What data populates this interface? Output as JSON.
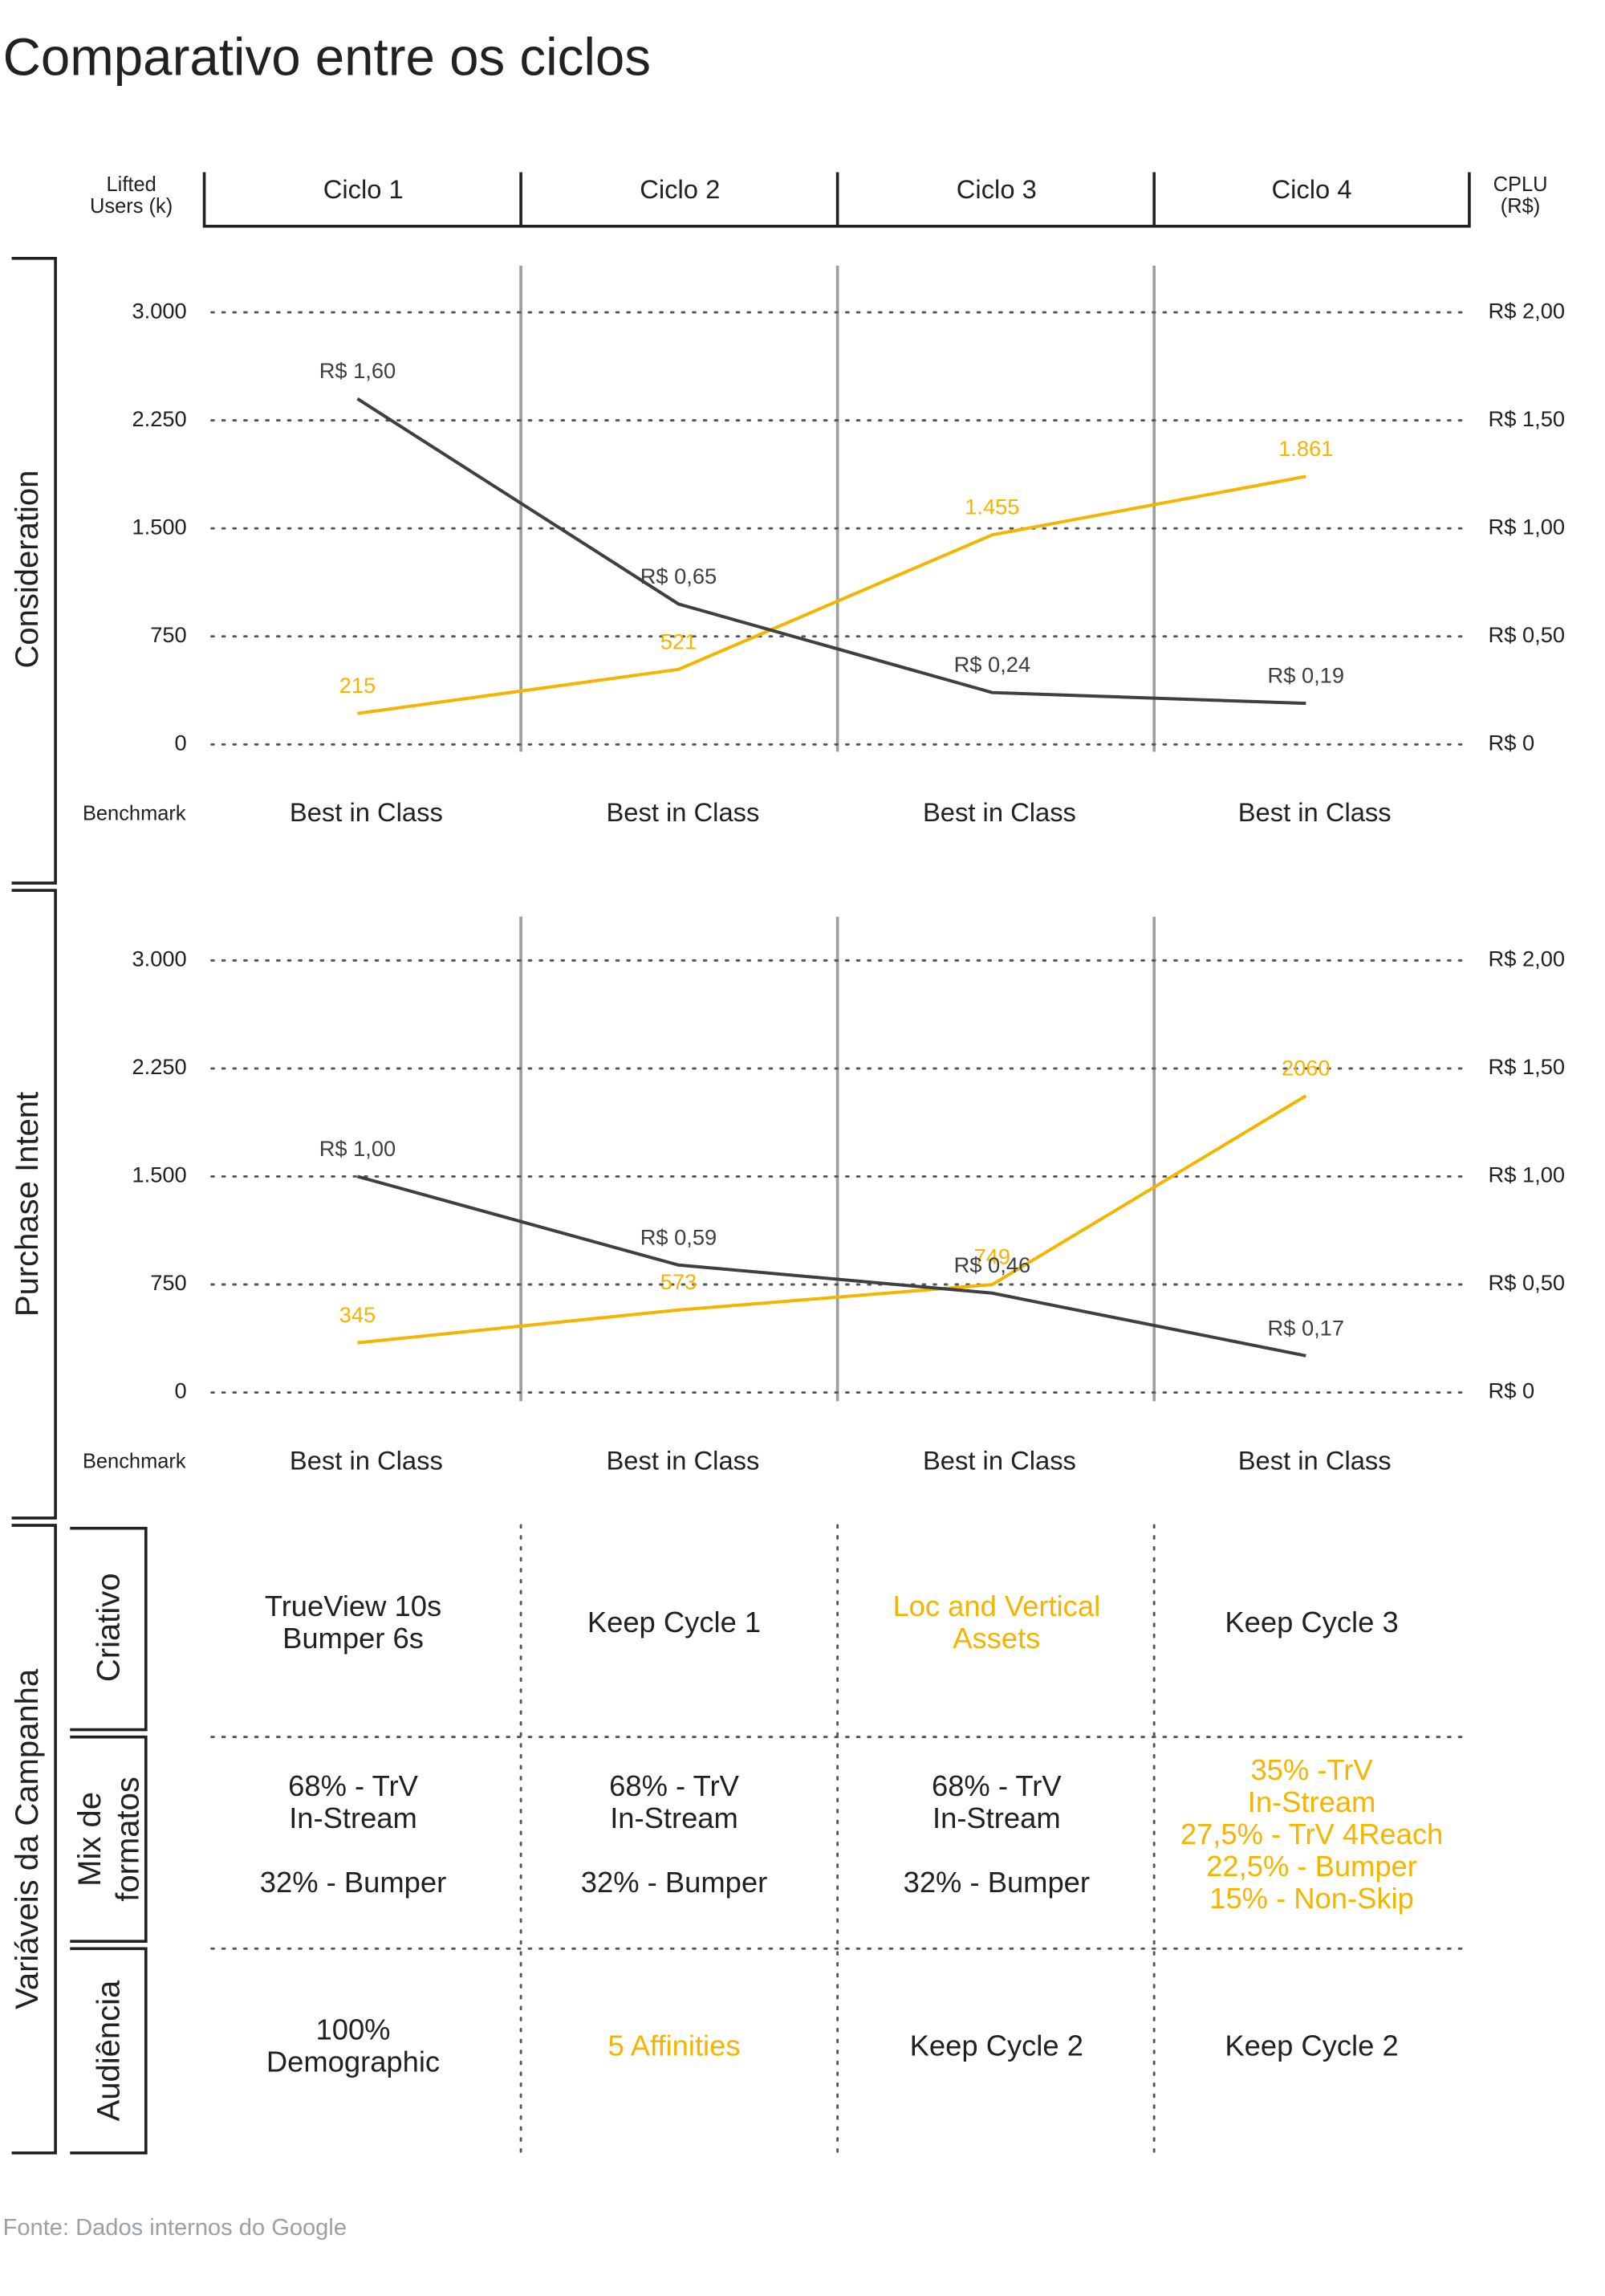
{
  "title": "Comparativo entre os ciclos",
  "chart_data": [
    {
      "type": "line",
      "title": "Consideration",
      "categories": [
        "Ciclo 1",
        "Ciclo 2",
        "Ciclo 3",
        "Ciclo 4"
      ],
      "y_label": [
        "Lifted",
        "Users (k)"
      ],
      "y2_label": [
        "CPLU",
        "(R$)"
      ],
      "ylim": [
        0,
        3000
      ],
      "yticks": [
        0,
        750,
        {
          "value": 1500,
          "label": "1.500"
        },
        {
          "value": 2250,
          "label": "2.250"
        },
        {
          "value": 3000,
          "label": "3.000"
        }
      ],
      "y2lim": [
        0,
        2
      ],
      "y2ticks": [
        {
          "value": 0,
          "label": "R$ 0"
        },
        {
          "value": 0.5,
          "label": "R$ 0,50"
        },
        {
          "value": 1,
          "label": "R$ 1,00"
        },
        {
          "value": 1.5,
          "label": "R$ 1,50"
        },
        {
          "value": 2,
          "label": "R$ 2,00"
        }
      ],
      "grid": true,
      "series": [
        {
          "color": "#f4b400",
          "values": [
            215,
            521,
            1455,
            1861
          ],
          "value_labels": [
            "215",
            "521",
            "1.455",
            "1.861"
          ]
        },
        {
          "color": "#3c4043",
          "axis": "y2",
          "values": [
            1.6,
            0.65,
            0.24,
            0.19
          ],
          "value_labels": [
            "R$ 1,60",
            "R$ 0,65",
            "R$ 0,24",
            "R$ 0,19"
          ]
        }
      ],
      "benchmark_label": "Benchmark",
      "benchmark": [
        "Best in Class",
        "Best in Class",
        "Best in Class",
        "Best in Class"
      ]
    },
    {
      "type": "line",
      "title": "Purchase Intent",
      "ylim": [
        0,
        3000
      ],
      "yticks": [
        0,
        750,
        {
          "value": 1500,
          "label": "1.500"
        },
        {
          "value": 2250,
          "label": "2.250"
        },
        {
          "value": 3000,
          "label": "3.000"
        }
      ],
      "y2lim": [
        0,
        2
      ],
      "y2ticks": [
        {
          "value": 0,
          "label": "R$ 0"
        },
        {
          "value": 0.5,
          "label": "R$ 0,50"
        },
        {
          "value": 1,
          "label": "R$ 1,00"
        },
        {
          "value": 1.5,
          "label": "R$ 1,50"
        },
        {
          "value": 2,
          "label": "R$ 2,00"
        }
      ],
      "grid": true,
      "series": [
        {
          "color": "#f4b400",
          "values": [
            345,
            573,
            749,
            2060
          ]
        },
        {
          "color": "#3c4043",
          "axis": "y2",
          "values": [
            1.0,
            0.59,
            0.46,
            0.17
          ],
          "value_labels": [
            "R$ 1,00",
            "R$ 0,59",
            "R$ 0,46",
            "R$ 0,17"
          ]
        }
      ],
      "benchmark_label": "Benchmark",
      "benchmark": [
        "Best in Class",
        "Best in Class",
        "Best in Class",
        "Best in Class"
      ]
    }
  ],
  "table": {
    "title": "Variáveis da Campanha",
    "rows": [
      {
        "label": [
          "Criativo"
        ],
        "cells": [
          {
            "paragraphs": [
              [
                "TrueView 10s",
                "Bumper 6s"
              ]
            ],
            "color": "#202124"
          },
          {
            "paragraphs": [
              [
                "Keep  Cycle 1"
              ]
            ],
            "color": "#202124"
          },
          {
            "paragraphs": [
              [
                "Loc and Vertical",
                "Assets"
              ]
            ],
            "color": "#f4b400"
          },
          {
            "paragraphs": [
              [
                "Keep Cycle 3"
              ]
            ],
            "color": "#202124"
          }
        ]
      },
      {
        "label": [
          "Mix de",
          "formatos"
        ],
        "cells": [
          {
            "paragraphs": [
              [
                "68% - TrV",
                "In-Stream"
              ],
              [
                "32% - Bumper"
              ]
            ],
            "color": "#202124"
          },
          {
            "paragraphs": [
              [
                "68% - TrV",
                "In-Stream"
              ],
              [
                "32% - Bumper"
              ]
            ],
            "color": "#202124"
          },
          {
            "paragraphs": [
              [
                "68% - TrV",
                "In-Stream"
              ],
              [
                "32% - Bumper"
              ]
            ],
            "color": "#202124"
          },
          {
            "paragraphs": [
              [
                "35% -TrV",
                "In-Stream",
                "27,5% - TrV 4Reach",
                "22,5% - Bumper",
                "15% - Non-Skip"
              ]
            ],
            "color": "#f4b400"
          }
        ]
      },
      {
        "label": [
          "Audiência"
        ],
        "cells": [
          {
            "paragraphs": [
              [
                "100%",
                "Demographic"
              ]
            ],
            "color": "#202124"
          },
          {
            "paragraphs": [
              [
                "5 Affinities"
              ]
            ],
            "color": "#f4b400"
          },
          {
            "paragraphs": [
              [
                "Keep Cycle 2"
              ]
            ],
            "color": "#202124"
          },
          {
            "paragraphs": [
              [
                "Keep Cycle 2"
              ]
            ],
            "color": "#202124"
          }
        ]
      }
    ]
  },
  "source": "Fonte: Dados internos do Google"
}
